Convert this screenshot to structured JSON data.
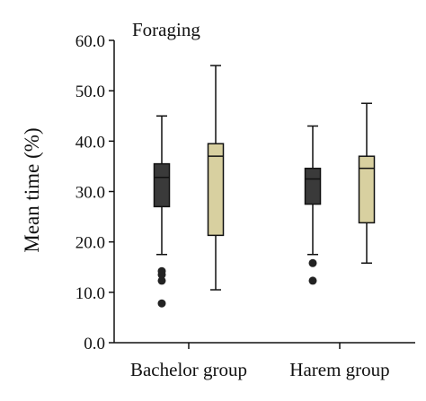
{
  "chart_data": {
    "type": "boxplot",
    "title": "Foraging",
    "ylabel": "Mean time (%)",
    "ylim": [
      0,
      60
    ],
    "yticks": [
      "0.0",
      "10.0",
      "20.0",
      "30.0",
      "40.0",
      "50.0",
      "60.0"
    ],
    "categories": [
      "Bachelor group",
      "Harem group"
    ],
    "grid": false,
    "series": [
      {
        "fill": "#3a3a3a",
        "boxes": [
          {
            "whisker_low": 17.5,
            "q1": 27.0,
            "median": 32.8,
            "q3": 35.5,
            "whisker_high": 45.0,
            "outliers": [
              14.2,
              13.5,
              12.3,
              7.8
            ]
          },
          {
            "whisker_low": 17.5,
            "q1": 27.5,
            "median": 32.5,
            "q3": 34.6,
            "whisker_high": 43.0,
            "outliers": [
              15.8,
              12.3
            ]
          }
        ]
      },
      {
        "fill": "#d8d0a0",
        "boxes": [
          {
            "whisker_low": 10.5,
            "q1": 21.3,
            "median": 37.0,
            "q3": 39.5,
            "whisker_high": 55.0,
            "outliers": []
          },
          {
            "whisker_low": 15.8,
            "q1": 23.8,
            "median": 34.6,
            "q3": 37.0,
            "whisker_high": 47.5,
            "outliers": []
          }
        ]
      }
    ]
  }
}
